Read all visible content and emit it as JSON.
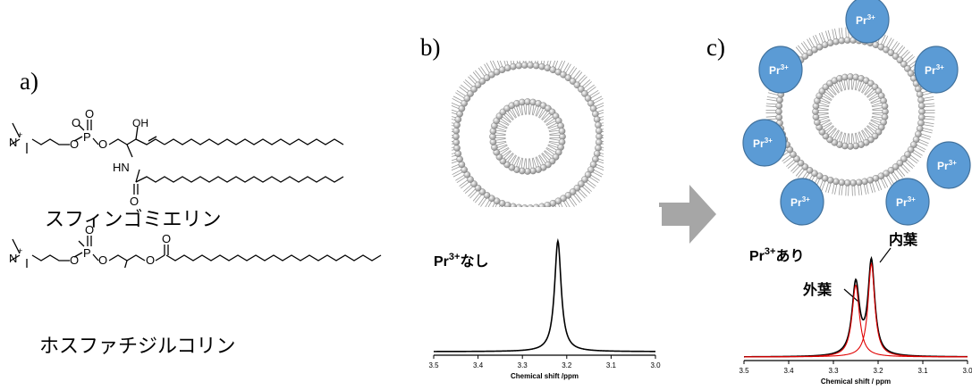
{
  "panels": {
    "a": {
      "label": "a)",
      "molecule_1": {
        "name": "スフィンゴミエリン",
        "atoms": {
          "n": "N",
          "n_charge": "+",
          "o": "O",
          "p": "P",
          "oh": "OH",
          "hn": "HN"
        }
      },
      "molecule_2": {
        "name": "ホスファチジルコリン",
        "atoms": {
          "n": "N",
          "n_charge": "+",
          "o": "O",
          "p": "P"
        }
      }
    },
    "b": {
      "label": "b)",
      "spectrum_label": {
        "base": "Pr",
        "sup": "3+",
        "rest": "なし"
      }
    },
    "c": {
      "label": "c)",
      "spectrum_label": {
        "base": "Pr",
        "sup": "3+",
        "rest": "あり"
      },
      "ion": {
        "base": "Pr",
        "sup": "3+"
      },
      "peak_inner": "内葉",
      "peak_outer": "外葉"
    }
  },
  "chart_data": [
    {
      "type": "line",
      "title": "",
      "xlabel": "Chemical shift /ppm",
      "ylabel": "",
      "x_ticks": [
        "3.5",
        "3.4",
        "3.3",
        "3.2",
        "3.1",
        "3.0"
      ],
      "xlim": [
        3.5,
        3.0
      ],
      "x_reversed": true,
      "grid": false,
      "series": [
        {
          "color": "#000000",
          "peaks": [
            {
              "center": 3.22,
              "height": 1.0,
              "width": 0.009
            }
          ]
        }
      ]
    },
    {
      "type": "line",
      "title": "",
      "xlabel": "Chemical shift / ppm",
      "ylabel": "",
      "x_ticks": [
        "3.5",
        "3.4",
        "3.3",
        "3.2",
        "3.1",
        "3.0"
      ],
      "xlim": [
        3.5,
        3.0
      ],
      "x_reversed": true,
      "grid": false,
      "series": [
        {
          "color": "#000000",
          "peaks": [
            {
              "center": 3.25,
              "height": 0.6,
              "width": 0.01
            },
            {
              "center": 3.215,
              "height": 0.78,
              "width": 0.009
            }
          ]
        },
        {
          "color": "#e00000",
          "peaks": [
            {
              "center": 3.25,
              "height": 0.6,
              "width": 0.01
            }
          ]
        },
        {
          "color": "#e00000",
          "peaks": [
            {
              "center": 3.215,
              "height": 0.78,
              "width": 0.009
            }
          ]
        }
      ]
    }
  ],
  "colors": {
    "ion_fill": "#5b9bd5",
    "ion_stroke": "#41719c",
    "arrow": "#a6a6a6",
    "fit": "#e00000"
  }
}
